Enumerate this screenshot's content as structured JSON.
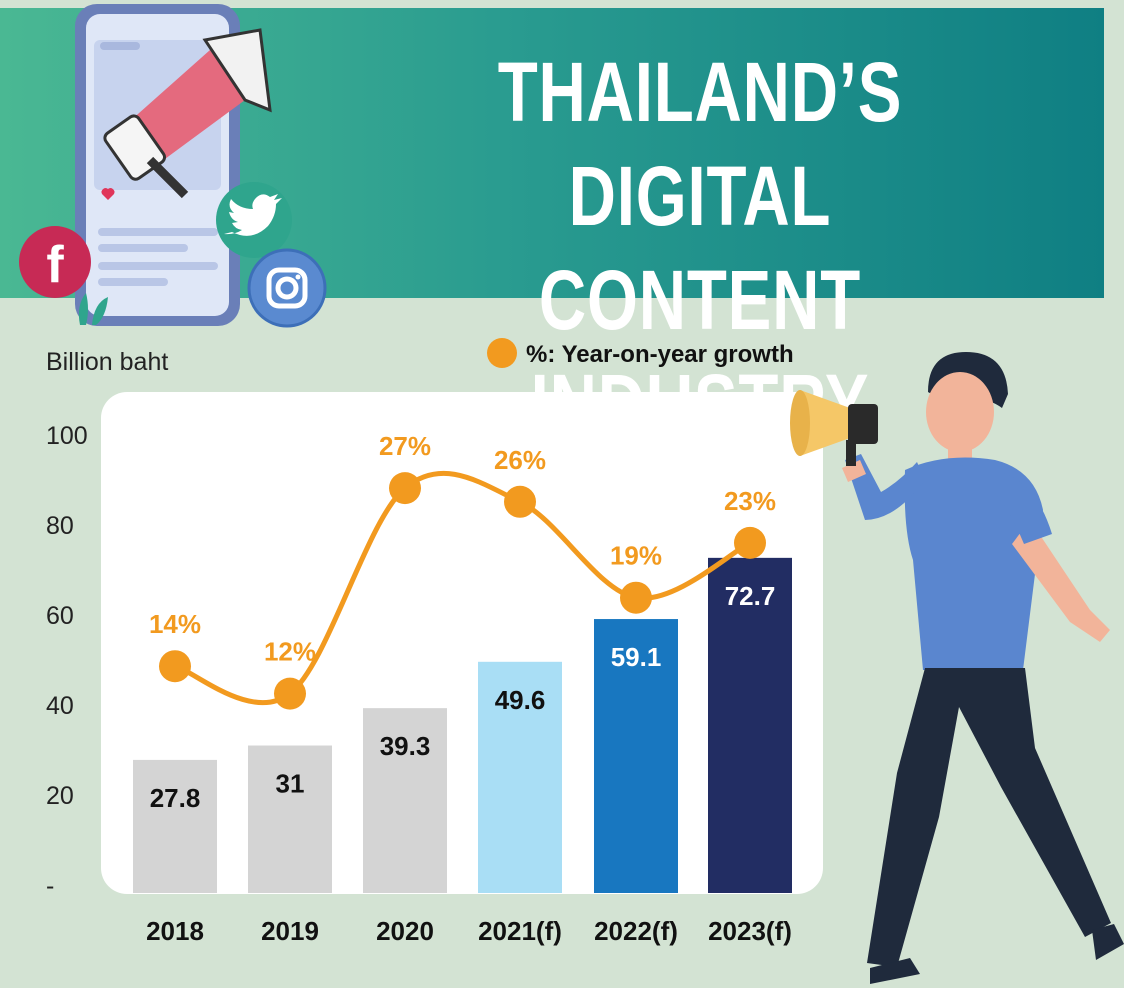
{
  "header": {
    "title_line1": "THAILAND’S DIGITAL",
    "title_line2": "CONTENT INDUSTRY"
  },
  "decorations": {
    "icons": [
      "megaphone-icon",
      "smartphone-icon",
      "facebook-icon",
      "twitter-icon",
      "instagram-icon",
      "heart-icon",
      "person-with-megaphone-illustration"
    ]
  },
  "colors": {
    "banner_start": "#4ab893",
    "banner_end": "#0f7f83",
    "page_bg": "#d3e3d3",
    "line": "#f29a1f",
    "bars": [
      "#d4d4d4",
      "#d4d4d4",
      "#d4d4d4",
      "#a9def5",
      "#1877c0",
      "#222d63"
    ]
  },
  "chart_data": {
    "type": "bar",
    "ylabel": "Billion baht",
    "ylim": [
      0,
      100
    ],
    "yticks": [
      "-",
      "20",
      "40",
      "60",
      "80",
      "100"
    ],
    "categories": [
      "2018",
      "2019",
      "2020",
      "2021(f)",
      "2022(f)",
      "2023(f)"
    ],
    "values": [
      27.8,
      31,
      39.3,
      49.6,
      59.1,
      72.7
    ],
    "value_labels": [
      "27.8",
      "31",
      "39.3",
      "49.6",
      "59.1",
      "72.7"
    ],
    "growth_series": {
      "name": "%: Year-on-year growth",
      "values": [
        14,
        12,
        27,
        26,
        19,
        23
      ],
      "labels": [
        "14%",
        "12%",
        "27%",
        "26%",
        "19%",
        "23%"
      ]
    },
    "legend_position": "top"
  }
}
